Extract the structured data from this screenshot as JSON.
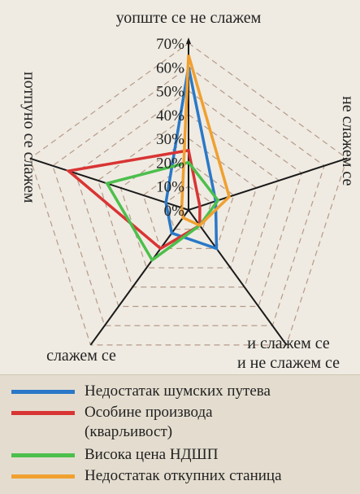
{
  "chart_data": {
    "type": "radar",
    "axes": [
      "уопште се не слажем",
      "не слажем се",
      "и слажем се и не слажем се",
      "слажем се",
      "потпуно се слажем"
    ],
    "axis_labels": {
      "top": "уопште се не слажем",
      "right": "не слажем се",
      "bottom_right_line1": "и слажем се",
      "bottom_right_line2": "и не слажем се",
      "bottom_left": "слажем се",
      "left": "потпуно се слажем"
    },
    "ticks": [
      "0%",
      "10%",
      "20%",
      "30%",
      "40%",
      "50%",
      "60%",
      "70%"
    ],
    "rmax": 70,
    "series": [
      {
        "name": "Недостатак шумских путева",
        "color": "#2a78c8",
        "values": [
          60,
          12,
          20,
          12,
          10
        ]
      },
      {
        "name": "Особине производа (кваръивост)",
        "color": "#d93434",
        "values": [
          25,
          5,
          8,
          20,
          53
        ]
      },
      {
        "name": "Висока цена НДШП",
        "color": "#4cbf4c",
        "values": [
          20,
          13,
          8,
          26,
          36
        ]
      },
      {
        "name": "Недостатак откупних станица",
        "color": "#f0a030",
        "values": [
          65,
          18,
          8,
          4,
          3
        ]
      }
    ]
  },
  "legend": [
    {
      "line1": "Недостатак шумских путева",
      "color": "#2a78c8"
    },
    {
      "line1": "Особине производа",
      "line2": "(кварљивост)",
      "color": "#d93434"
    },
    {
      "line1": "Висока цена НДШП",
      "color": "#4cbf4c"
    },
    {
      "line1": "Недостатак откупних станица",
      "color": "#f0a030"
    }
  ]
}
